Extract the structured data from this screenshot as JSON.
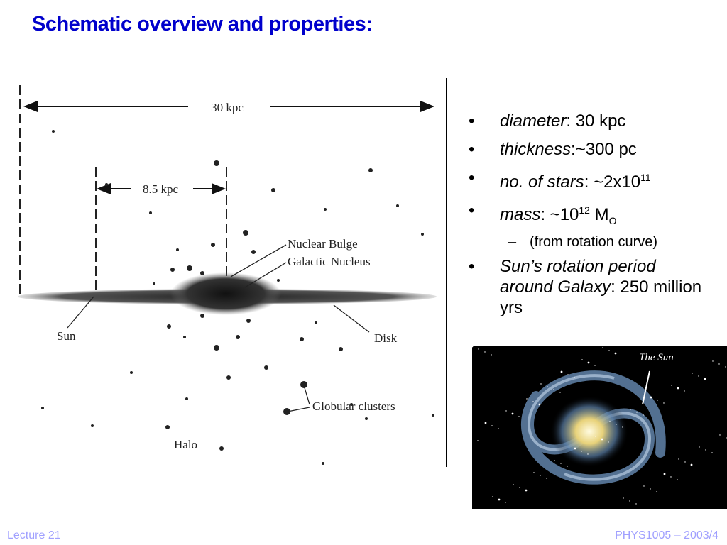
{
  "header": {
    "title": "Schematic overview and properties:"
  },
  "diagram": {
    "labels": {
      "width": "30 kpc",
      "sun_distance": "8.5 kpc",
      "bulge": "Nuclear Bulge",
      "nucleus": "Galactic Nucleus",
      "sun": "Sun",
      "disk": "Disk",
      "clusters": "Globular clusters",
      "halo": "Halo"
    }
  },
  "bullets": [
    {
      "level": 1,
      "runs": [
        {
          "text": "diameter",
          "style": "italic"
        },
        {
          "text": ": 30 kpc",
          "style": "normal"
        }
      ]
    },
    {
      "level": 1,
      "runs": [
        {
          "text": "thickness",
          "style": "italic"
        },
        {
          "text": ":~300 pc",
          "style": "normal"
        }
      ]
    },
    {
      "level": 1,
      "runs": [
        {
          "text": "no. of stars",
          "style": "italic"
        },
        {
          "text": ": ~2x10",
          "style": "normal"
        },
        {
          "text": "11",
          "style": "sup"
        }
      ]
    },
    {
      "level": 1,
      "runs": [
        {
          "text": "mass",
          "style": "italic"
        },
        {
          "text": ": ~10",
          "style": "normal"
        },
        {
          "text": "12",
          "style": "sup"
        },
        {
          "text": " M",
          "style": "normal"
        },
        {
          "text": "O",
          "style": "sub"
        }
      ]
    },
    {
      "level": 2,
      "runs": [
        {
          "text": "(from rotation curve)",
          "style": "normal"
        }
      ]
    },
    {
      "level": 1,
      "runs": [
        {
          "text": "Sun’s rotation period around Galaxy",
          "style": "italic"
        },
        {
          "text": ": 250 million yrs",
          "style": "normal"
        }
      ]
    }
  ],
  "photo": {
    "label": "The Sun"
  },
  "footer": {
    "left": "Lecture 21",
    "right": "PHYS1005 – 2003/4"
  }
}
